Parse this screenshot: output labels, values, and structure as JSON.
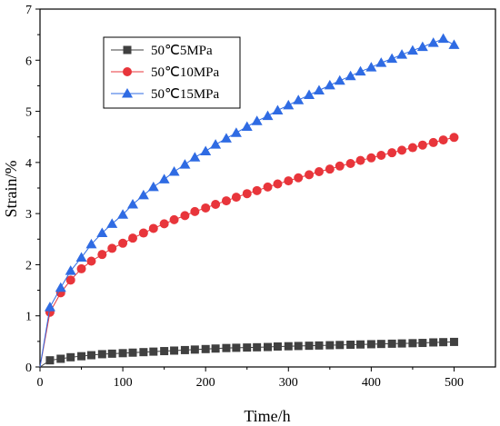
{
  "chart_data": {
    "type": "line",
    "xlabel": "Time/h",
    "ylabel": "Strain/%",
    "xlim": [
      0,
      550
    ],
    "ylim": [
      0,
      7
    ],
    "xticks": [
      0,
      100,
      200,
      300,
      400,
      500
    ],
    "yticks": [
      0,
      1,
      2,
      3,
      4,
      5,
      6,
      7
    ],
    "legend_position": "top-left",
    "grid": false,
    "series": [
      {
        "name": "50℃5MPa",
        "color": "#404040",
        "marker": "square",
        "points": [
          [
            0,
            0
          ],
          [
            12,
            0.13
          ],
          [
            25,
            0.16
          ],
          [
            37,
            0.19
          ],
          [
            50,
            0.21
          ],
          [
            62,
            0.23
          ],
          [
            75,
            0.25
          ],
          [
            87,
            0.26
          ],
          [
            100,
            0.27
          ],
          [
            112,
            0.28
          ],
          [
            125,
            0.29
          ],
          [
            137,
            0.3
          ],
          [
            150,
            0.31
          ],
          [
            162,
            0.32
          ],
          [
            175,
            0.33
          ],
          [
            187,
            0.34
          ],
          [
            200,
            0.35
          ],
          [
            212,
            0.36
          ],
          [
            225,
            0.37
          ],
          [
            237,
            0.375
          ],
          [
            250,
            0.38
          ],
          [
            262,
            0.385
          ],
          [
            275,
            0.39
          ],
          [
            287,
            0.4
          ],
          [
            300,
            0.405
          ],
          [
            312,
            0.41
          ],
          [
            325,
            0.415
          ],
          [
            337,
            0.42
          ],
          [
            350,
            0.425
          ],
          [
            362,
            0.43
          ],
          [
            375,
            0.435
          ],
          [
            387,
            0.44
          ],
          [
            400,
            0.445
          ],
          [
            412,
            0.45
          ],
          [
            425,
            0.455
          ],
          [
            437,
            0.46
          ],
          [
            450,
            0.465
          ],
          [
            462,
            0.47
          ],
          [
            475,
            0.48
          ],
          [
            487,
            0.485
          ],
          [
            500,
            0.49
          ]
        ]
      },
      {
        "name": "50℃10MPa",
        "color": "#e8353b",
        "marker": "circle",
        "points": [
          [
            0,
            0
          ],
          [
            12,
            1.07
          ],
          [
            25,
            1.45
          ],
          [
            37,
            1.7
          ],
          [
            50,
            1.92
          ],
          [
            62,
            2.07
          ],
          [
            75,
            2.2
          ],
          [
            87,
            2.32
          ],
          [
            100,
            2.42
          ],
          [
            112,
            2.52
          ],
          [
            125,
            2.62
          ],
          [
            137,
            2.71
          ],
          [
            150,
            2.8
          ],
          [
            162,
            2.88
          ],
          [
            175,
            2.96
          ],
          [
            187,
            3.04
          ],
          [
            200,
            3.11
          ],
          [
            212,
            3.18
          ],
          [
            225,
            3.25
          ],
          [
            237,
            3.32
          ],
          [
            250,
            3.39
          ],
          [
            262,
            3.45
          ],
          [
            275,
            3.52
          ],
          [
            287,
            3.58
          ],
          [
            300,
            3.64
          ],
          [
            312,
            3.7
          ],
          [
            325,
            3.76
          ],
          [
            337,
            3.82
          ],
          [
            350,
            3.87
          ],
          [
            362,
            3.93
          ],
          [
            375,
            3.98
          ],
          [
            387,
            4.04
          ],
          [
            400,
            4.09
          ],
          [
            412,
            4.14
          ],
          [
            425,
            4.19
          ],
          [
            437,
            4.24
          ],
          [
            450,
            4.29
          ],
          [
            462,
            4.34
          ],
          [
            475,
            4.39
          ],
          [
            487,
            4.44
          ],
          [
            500,
            4.49
          ]
        ]
      },
      {
        "name": "50℃15MPa",
        "color": "#2f6be3",
        "marker": "triangle",
        "points": [
          [
            0,
            0
          ],
          [
            12,
            1.17
          ],
          [
            25,
            1.55
          ],
          [
            37,
            1.88
          ],
          [
            50,
            2.14
          ],
          [
            62,
            2.4
          ],
          [
            75,
            2.62
          ],
          [
            87,
            2.8
          ],
          [
            100,
            2.98
          ],
          [
            112,
            3.18
          ],
          [
            125,
            3.36
          ],
          [
            137,
            3.52
          ],
          [
            150,
            3.67
          ],
          [
            162,
            3.82
          ],
          [
            175,
            3.96
          ],
          [
            187,
            4.1
          ],
          [
            200,
            4.22
          ],
          [
            212,
            4.35
          ],
          [
            225,
            4.47
          ],
          [
            237,
            4.58
          ],
          [
            250,
            4.7
          ],
          [
            262,
            4.81
          ],
          [
            275,
            4.91
          ],
          [
            287,
            5.02
          ],
          [
            300,
            5.12
          ],
          [
            312,
            5.22
          ],
          [
            325,
            5.32
          ],
          [
            337,
            5.41
          ],
          [
            350,
            5.51
          ],
          [
            362,
            5.6
          ],
          [
            375,
            5.69
          ],
          [
            387,
            5.78
          ],
          [
            400,
            5.86
          ],
          [
            412,
            5.95
          ],
          [
            425,
            6.03
          ],
          [
            437,
            6.11
          ],
          [
            450,
            6.19
          ],
          [
            462,
            6.26
          ],
          [
            475,
            6.34
          ],
          [
            487,
            6.42
          ],
          [
            500,
            6.3
          ]
        ]
      }
    ]
  }
}
